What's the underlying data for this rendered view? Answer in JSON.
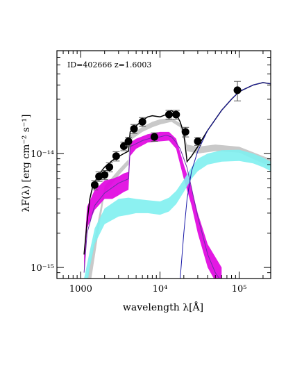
{
  "chart_data": {
    "type": "scatter",
    "title": "",
    "annotation": "ID=402666  z=1.6003",
    "xlabel": "wavelength λ[Å]",
    "ylabel": "λF(λ) [erg cm⁻² s⁻¹]",
    "xscale": "log",
    "yscale": "log",
    "xlim": [
      500,
      250000
    ],
    "ylim": [
      8e-16,
      8e-14
    ],
    "x_tick_labels": [
      {
        "value": 1000,
        "label": "1000"
      },
      {
        "value": 10000,
        "label": "10⁴"
      },
      {
        "value": 100000,
        "label": "10⁵"
      }
    ],
    "y_tick_labels": [
      {
        "value": 1e-15,
        "label": "10⁻¹⁵"
      },
      {
        "value": 1e-14,
        "label": "10⁻¹⁴"
      }
    ],
    "grid": false,
    "colors": {
      "total_model": "#000000",
      "stellar_band": "#e000e0",
      "dust_band": "#7ff0f0",
      "grey_band": "#c0c0c0",
      "stellar_line": "#6b2fa8",
      "ir_line": "#1a1aa8",
      "points": "#000000"
    },
    "photometry": [
      {
        "x": 1500,
        "y": 5.3e-15,
        "err": 5e-16
      },
      {
        "x": 1700,
        "y": 6.3e-15,
        "err": 6e-16
      },
      {
        "x": 2000,
        "y": 6.5e-15,
        "err": 6e-16
      },
      {
        "x": 2300,
        "y": 7.6e-15,
        "err": 7e-16
      },
      {
        "x": 2800,
        "y": 9.5e-15,
        "err": 9e-16
      },
      {
        "x": 3500,
        "y": 1.16e-14,
        "err": 1e-15
      },
      {
        "x": 4000,
        "y": 1.28e-14,
        "err": 1.1e-15
      },
      {
        "x": 4700,
        "y": 1.65e-14,
        "err": 1.5e-15
      },
      {
        "x": 6000,
        "y": 1.9e-14,
        "err": 1.7e-15
      },
      {
        "x": 8500,
        "y": 1.4e-14,
        "err": 1.2e-15
      },
      {
        "x": 13000,
        "y": 2.2e-14,
        "err": 2e-15
      },
      {
        "x": 16000,
        "y": 2.2e-14,
        "err": 2e-15
      },
      {
        "x": 21000,
        "y": 1.55e-14,
        "err": 1.5e-15
      },
      {
        "x": 30000,
        "y": 1.28e-14,
        "err": 1e-15
      },
      {
        "x": 95000,
        "y": 3.6e-14,
        "err": 7e-15
      }
    ],
    "series": [
      {
        "kind": "band",
        "color_key": "grey_band",
        "x": [
          1200,
          2000,
          3000,
          4000,
          4200,
          6000,
          8000,
          10000,
          14000,
          18000,
          22000,
          30000,
          50000,
          100000,
          200000,
          250000
        ],
        "lo": [
          2e-16,
          4.5e-15,
          6.4e-15,
          8e-15,
          1.3e-14,
          1.55e-14,
          1.7e-14,
          1.8e-14,
          1.9e-14,
          1.7e-14,
          1.05e-14,
          1e-14,
          1.05e-14,
          1.02e-14,
          8.2e-15,
          7.8e-15
        ],
        "hi": [
          3e-16,
          5.2e-15,
          7.2e-15,
          8.9e-15,
          1.45e-14,
          1.72e-14,
          1.9e-14,
          2e-14,
          2.05e-14,
          1.85e-14,
          1.2e-14,
          1.15e-14,
          1.2e-14,
          1.15e-14,
          9.5e-15,
          9e-15
        ]
      },
      {
        "kind": "band",
        "color_key": "stellar_band",
        "x": [
          1100,
          1200,
          1500,
          2000,
          2500,
          3000,
          3500,
          4000,
          4200,
          5000,
          7000,
          10000,
          13000,
          16000,
          20000,
          25000,
          30000,
          40000,
          60000
        ],
        "lo": [
          9e-16,
          2.2e-15,
          3.2e-15,
          4e-15,
          4e-15,
          4.3e-15,
          4.6e-15,
          4.8e-15,
          9.5e-15,
          1.1e-14,
          1.25e-14,
          1.28e-14,
          1.3e-14,
          1.1e-14,
          6e-15,
          3.5e-15,
          2e-15,
          1e-15,
          6e-16
        ],
        "hi": [
          1.3e-15,
          3.4e-15,
          4.8e-15,
          5.8e-15,
          6e-15,
          6.3e-15,
          6.7e-15,
          6.9e-15,
          1.25e-14,
          1.35e-14,
          1.48e-14,
          1.55e-14,
          1.55e-14,
          1.35e-14,
          8e-15,
          5e-15,
          3e-15,
          1.6e-15,
          1e-15
        ]
      },
      {
        "kind": "band",
        "color_key": "dust_band",
        "x": [
          1100,
          1300,
          1500,
          2000,
          3000,
          4000,
          5000,
          7000,
          10000,
          13000,
          16000,
          20000,
          25000,
          30000,
          40000,
          60000,
          100000,
          150000,
          200000,
          250000
        ],
        "lo": [
          3e-16,
          1e-15,
          1.6e-15,
          2.4e-15,
          2.8e-15,
          2.9e-15,
          3e-15,
          3e-15,
          2.9e-15,
          3.1e-15,
          3.6e-15,
          4.6e-15,
          6e-15,
          7e-15,
          8e-15,
          8.5e-15,
          8.6e-15,
          8.2e-15,
          7.6e-15,
          7e-15
        ],
        "hi": [
          5e-16,
          1.4e-15,
          2.2e-15,
          3.3e-15,
          4e-15,
          4.1e-15,
          4e-15,
          3.9e-15,
          3.8e-15,
          4.1e-15,
          4.7e-15,
          5.9e-15,
          7.6e-15,
          9e-15,
          1e-14,
          1.07e-14,
          1.08e-14,
          1e-14,
          9.2e-15,
          8.5e-15
        ]
      },
      {
        "kind": "line",
        "color_key": "total_model",
        "width": 1.5,
        "x": [
          1100,
          1200,
          1300,
          1400,
          1500,
          1700,
          2000,
          2500,
          3000,
          3500,
          4000,
          4200,
          5000,
          6000,
          7000,
          8000,
          10000,
          12000,
          14000,
          16000,
          18000,
          20000,
          22000,
          25000,
          30000,
          40000,
          60000,
          80000,
          100000,
          150000,
          200000,
          250000
        ],
        "y": [
          1.3e-15,
          2.5e-15,
          4e-15,
          5e-15,
          5.6e-15,
          6.6e-15,
          7.6e-15,
          8.7e-15,
          9.4e-15,
          1e-14,
          1.05e-14,
          1.55e-14,
          1.75e-14,
          1.95e-14,
          2.1e-14,
          2.15e-14,
          2.1e-14,
          2.2e-14,
          2.4e-14,
          2.2e-14,
          1.9e-14,
          1.5e-14,
          8.5e-15,
          9.5e-15,
          1.15e-14,
          1.6e-14,
          2.4e-14,
          3e-14,
          3.5e-14,
          4e-14,
          4.2e-14,
          4.1e-14
        ]
      },
      {
        "kind": "line",
        "color_key": "stellar_line",
        "width": 1.0,
        "x": [
          1100,
          1200,
          1500,
          2000,
          3000,
          4000,
          4200,
          6000,
          8000,
          10000,
          12000,
          14000,
          16000,
          18000,
          20000,
          22000,
          25000,
          30000,
          40000,
          50000,
          60000
        ],
        "y": [
          9e-16,
          2e-15,
          3.5e-15,
          4.5e-15,
          5.5e-15,
          6e-15,
          1.15e-14,
          1.3e-14,
          1.38e-14,
          1.4e-14,
          1.45e-14,
          1.4e-14,
          1.25e-14,
          1.1e-14,
          9e-15,
          7.5e-15,
          5e-15,
          2.8e-15,
          1.3e-15,
          9e-16,
          7.5e-16
        ]
      },
      {
        "kind": "line",
        "color_key": "ir_line",
        "width": 1.0,
        "x": [
          18000,
          20000,
          22000,
          25000,
          30000,
          40000,
          60000,
          80000,
          100000,
          150000,
          200000,
          250000
        ],
        "y": [
          8e-16,
          2e-15,
          4e-15,
          7e-15,
          1.05e-14,
          1.6e-14,
          2.4e-14,
          3e-14,
          3.5e-14,
          4e-14,
          4.2e-14,
          4.1e-14
        ]
      }
    ]
  }
}
